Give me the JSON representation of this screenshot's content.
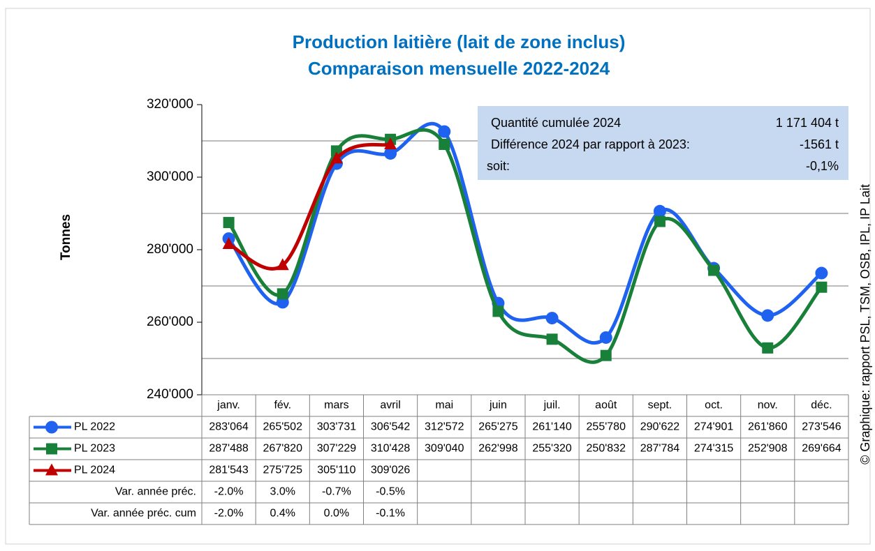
{
  "chart_data": {
    "type": "line",
    "title": "Production laitière (lait de zone inclus)",
    "subtitle": "Comparaison mensuelle 2022-2024",
    "y_label": "Tonnes",
    "source": "© Graphique: rapport PSL, TSM, OSB, IPL, IP Lait",
    "categories": [
      "janv.",
      "fév.",
      "mars",
      "avril",
      "mai",
      "juin",
      "juil.",
      "août",
      "sept.",
      "oct.",
      "nov.",
      "déc."
    ],
    "series": [
      {
        "name": "PL 2022",
        "color": "#1f62f0",
        "marker": "circle",
        "values": [
          283064,
          265502,
          303731,
          306542,
          312572,
          265275,
          261140,
          255780,
          290622,
          274901,
          261860,
          273546
        ],
        "value_labels": [
          "283'064",
          "265'502",
          "303'731",
          "306'542",
          "312'572",
          "265'275",
          "261'140",
          "255'780",
          "290'622",
          "274'901",
          "261'860",
          "273'546"
        ]
      },
      {
        "name": "PL 2023",
        "color": "#188038",
        "marker": "square",
        "values": [
          287488,
          267820,
          307229,
          310428,
          309040,
          262998,
          255320,
          250832,
          287784,
          274315,
          252908,
          269664
        ],
        "value_labels": [
          "287'488",
          "267'820",
          "307'229",
          "310'428",
          "309'040",
          "262'998",
          "255'320",
          "250'832",
          "287'784",
          "274'315",
          "252'908",
          "269'664"
        ]
      },
      {
        "name": "PL 2024",
        "color": "#c00000",
        "marker": "triangle",
        "values": [
          281543,
          275725,
          305110,
          309026,
          null,
          null,
          null,
          null,
          null,
          null,
          null,
          null
        ],
        "value_labels": [
          "281'543",
          "275'725",
          "305'110",
          "309'026",
          null,
          null,
          null,
          null,
          null,
          null,
          null,
          null
        ]
      }
    ],
    "extra_rows": [
      {
        "name": "Var. année préc.",
        "values": [
          -2.0,
          3.0,
          -0.7,
          -0.5
        ],
        "value_labels": [
          "-2.0%",
          "3.0%",
          "-0.7%",
          "-0.5%"
        ]
      },
      {
        "name": "Var. année préc. cum",
        "values": [
          -2.0,
          0.4,
          0.0,
          -0.1
        ],
        "value_labels": [
          "-2.0%",
          "0.4%",
          "0.0%",
          "-0.1%"
        ]
      }
    ],
    "ylim": [
      240000,
      320000
    ],
    "yticks": [
      {
        "value": 240000,
        "label": "240'000"
      },
      {
        "value": 260000,
        "label": "260'000"
      },
      {
        "value": 280000,
        "label": "280'000"
      },
      {
        "value": 300000,
        "label": "300'000"
      },
      {
        "value": 320000,
        "label": "320'000"
      }
    ],
    "grid_lines": [
      250000,
      270000,
      290000,
      310000
    ],
    "annotation": {
      "rows": [
        [
          "Quantité cumulée 2024",
          "1 171 404 t"
        ],
        [
          "Différence 2024 par rapport à 2023:",
          "-1561 t"
        ],
        [
          "soit:",
          "-0,1%"
        ]
      ]
    }
  }
}
